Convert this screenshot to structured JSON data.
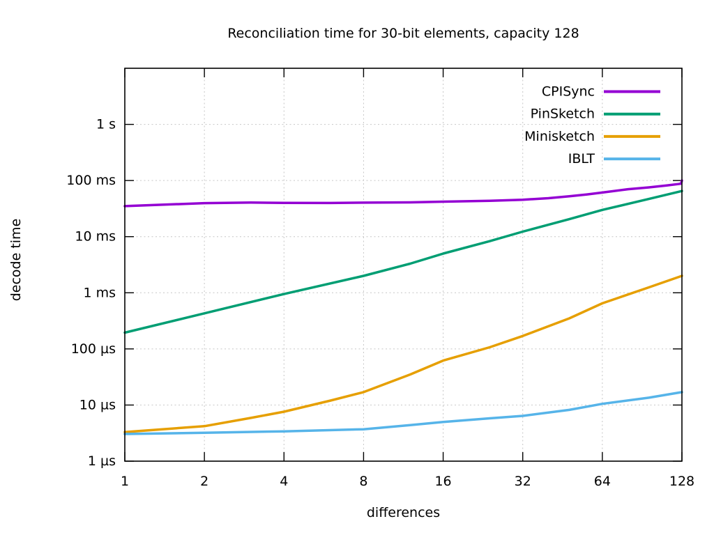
{
  "title": "Reconciliation time for 30-bit elements, capacity 128",
  "xlabel": "differences",
  "ylabel": "decode time",
  "chart_data": {
    "type": "line",
    "title": "Reconciliation time for 30-bit elements, capacity 128",
    "xlabel": "differences",
    "ylabel": "decode time",
    "x_scale": "log2",
    "y_scale": "log10",
    "grid": true,
    "legend_position": "top-right-inside",
    "xlim": [
      1,
      128
    ],
    "ylim_us": [
      1,
      10000000
    ],
    "x_ticks": [
      1,
      2,
      4,
      8,
      16,
      32,
      64,
      128
    ],
    "y_ticks": [
      {
        "label": "1 s",
        "us": 1000000
      },
      {
        "label": "100 ms",
        "us": 100000
      },
      {
        "label": "10 ms",
        "us": 10000
      },
      {
        "label": "1 ms",
        "us": 1000
      },
      {
        "label": "100 µs",
        "us": 100
      },
      {
        "label": "10 µs",
        "us": 10
      },
      {
        "label": "1 µs",
        "us": 1
      }
    ],
    "series": [
      {
        "name": "CPISync",
        "color": "#9400d3",
        "points_us": [
          [
            1,
            35000
          ],
          [
            2,
            39500
          ],
          [
            3,
            40500
          ],
          [
            4,
            40000
          ],
          [
            6,
            39800
          ],
          [
            8,
            40300
          ],
          [
            12,
            40800
          ],
          [
            16,
            42000
          ],
          [
            24,
            43500
          ],
          [
            32,
            45500
          ],
          [
            40,
            48500
          ],
          [
            48,
            52500
          ],
          [
            56,
            56500
          ],
          [
            64,
            61000
          ],
          [
            80,
            70000
          ],
          [
            96,
            75500
          ],
          [
            112,
            81500
          ],
          [
            124,
            86500
          ],
          [
            127,
            88000
          ],
          [
            128,
            100000
          ]
        ]
      },
      {
        "name": "PinSketch",
        "color": "#009e73",
        "points_us": [
          [
            1,
            195
          ],
          [
            2,
            430
          ],
          [
            4,
            950
          ],
          [
            8,
            2000
          ],
          [
            12,
            3300
          ],
          [
            16,
            5000
          ],
          [
            24,
            8300
          ],
          [
            32,
            12300
          ],
          [
            48,
            20500
          ],
          [
            64,
            30000
          ],
          [
            96,
            47000
          ],
          [
            128,
            65000
          ]
        ]
      },
      {
        "name": "Minisketch",
        "color": "#e69f00",
        "points_us": [
          [
            1,
            3.3
          ],
          [
            2,
            4.2
          ],
          [
            3,
            5.9
          ],
          [
            4,
            7.6
          ],
          [
            6,
            12
          ],
          [
            8,
            17
          ],
          [
            12,
            35
          ],
          [
            16,
            62
          ],
          [
            24,
            107
          ],
          [
            32,
            170
          ],
          [
            48,
            350
          ],
          [
            64,
            650
          ],
          [
            96,
            1250
          ],
          [
            128,
            2000
          ]
        ]
      },
      {
        "name": "IBLT",
        "color": "#56b4e9",
        "points_us": [
          [
            1,
            3.05
          ],
          [
            2,
            3.2
          ],
          [
            4,
            3.4
          ],
          [
            8,
            3.7
          ],
          [
            12,
            4.4
          ],
          [
            16,
            5.0
          ],
          [
            24,
            5.8
          ],
          [
            32,
            6.4
          ],
          [
            48,
            8.2
          ],
          [
            64,
            10.5
          ],
          [
            96,
            13.5
          ],
          [
            128,
            17
          ]
        ]
      }
    ]
  }
}
